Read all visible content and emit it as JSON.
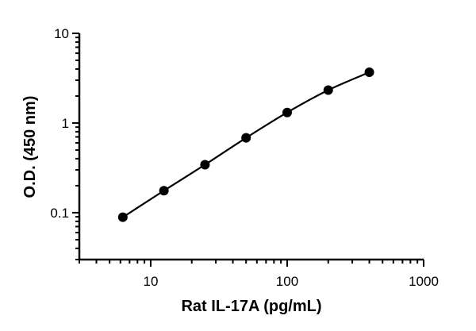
{
  "chart_data": {
    "type": "scatter",
    "title": "",
    "xlabel": "Rat IL-17A (pg/mL)",
    "ylabel": "O.D. (450 nm)",
    "xscale": "log",
    "yscale": "log",
    "xlim": [
      3,
      1000
    ],
    "ylim": [
      0.03,
      10
    ],
    "x_ticks": [
      {
        "value": 10,
        "label": "10"
      },
      {
        "value": 100,
        "label": "100"
      },
      {
        "value": 1000,
        "label": "1000"
      }
    ],
    "y_ticks": [
      {
        "value": 0.1,
        "label": "0.1"
      },
      {
        "value": 1,
        "label": "1"
      },
      {
        "value": 10,
        "label": "10"
      }
    ],
    "grid": false,
    "legend": "none",
    "series": [
      {
        "x": [
          6.25,
          12.5,
          25,
          50,
          100,
          200,
          400
        ],
        "y": [
          0.089,
          0.176,
          0.343,
          0.683,
          1.31,
          2.33,
          3.68
        ],
        "fit_curve": true
      }
    ],
    "colors": {
      "points": "#000000",
      "curve": "#000000",
      "axes": "#000000"
    }
  }
}
